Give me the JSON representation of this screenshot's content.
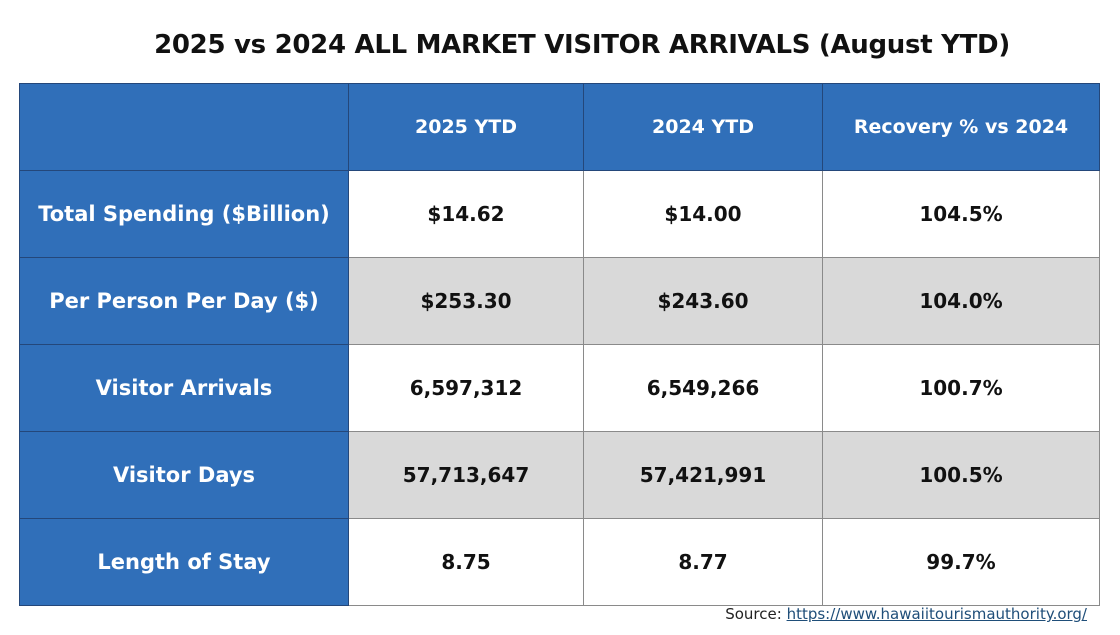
{
  "chart_data": {
    "type": "table",
    "title": "2025 vs 2024 ALL MARKET VISITOR ARRIVALS (August YTD)",
    "columns": [
      "",
      "2025 YTD",
      "2024 YTD",
      "Recovery % vs 2024"
    ],
    "rows": [
      {
        "label": "Total Spending ($Billion)",
        "y2025": "$14.62",
        "y2024": "$14.00",
        "recovery": "104.5%"
      },
      {
        "label": "Per Person Per Day ($)",
        "y2025": "$253.30",
        "y2024": "$243.60",
        "recovery": "104.0%"
      },
      {
        "label": "Visitor Arrivals",
        "y2025": "6,597,312",
        "y2024": "6,549,266",
        "recovery": "100.7%"
      },
      {
        "label": "Visitor Days",
        "y2025": "57,713,647",
        "y2024": "57,421,991",
        "recovery": "100.5%"
      },
      {
        "label": "Length of Stay",
        "y2025": "8.75",
        "y2024": "8.77",
        "recovery": "99.7%"
      }
    ]
  },
  "source": {
    "prefix": "Source: ",
    "link": "https://www.hawaiitourismauthority.org/"
  },
  "colors": {
    "header": "#306fb9",
    "alt_row": "#d9d9d9"
  }
}
